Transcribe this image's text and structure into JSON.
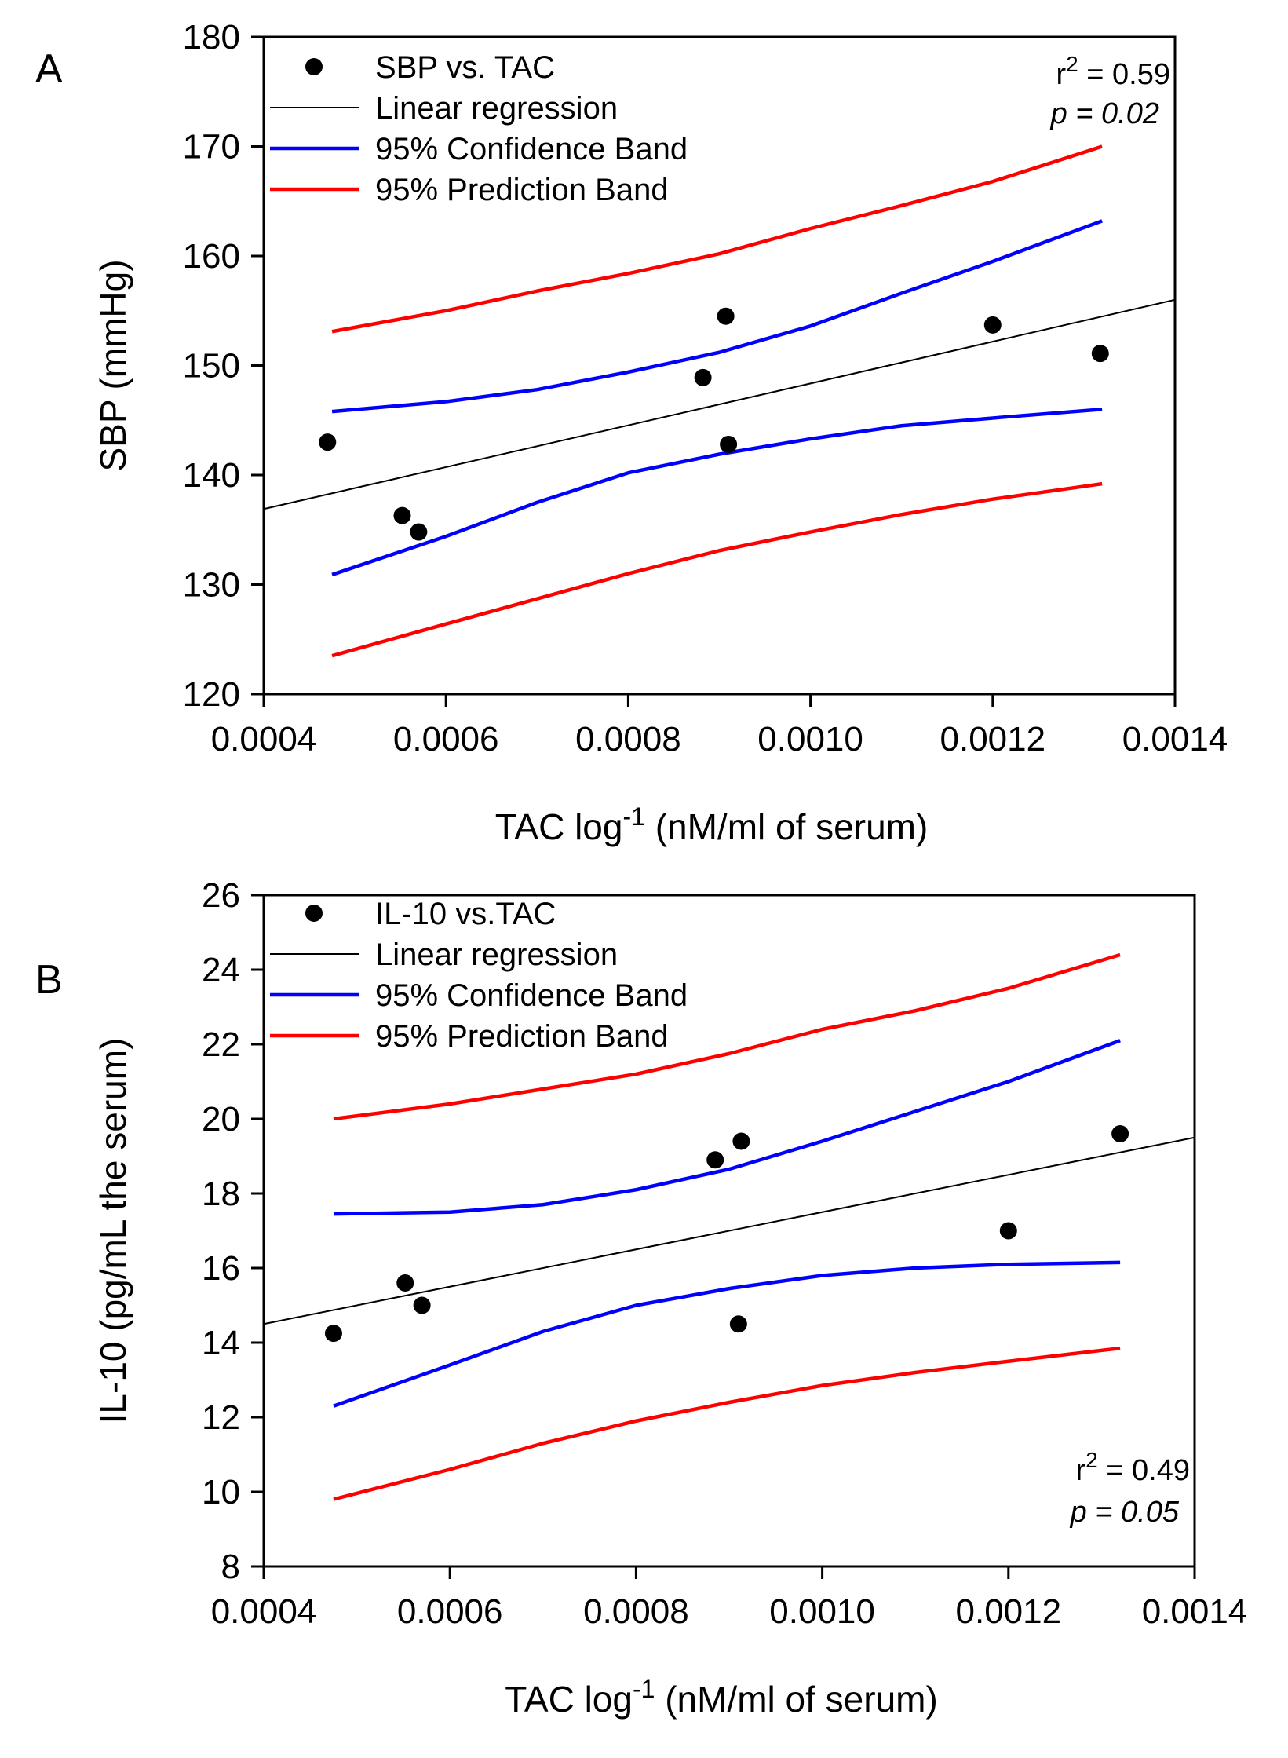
{
  "chart_data": [
    {
      "type": "scatter",
      "panel_label": "A",
      "title": "",
      "xlabel": "TAC log",
      "xlabel_sup": "-1",
      "xlabel_suffix": " (nM/ml of serum)",
      "ylabel": "SBP (mmHg)",
      "xlim": [
        0.0004,
        0.0014
      ],
      "ylim": [
        120,
        180
      ],
      "xticks": [
        0.0004,
        0.0006,
        0.0008,
        0.001,
        0.0012,
        0.0014
      ],
      "xtick_labels": [
        "0.0004",
        "0.0006",
        "0.0008",
        "0.0010",
        "0.0012",
        "0.0014"
      ],
      "yticks": [
        120,
        130,
        140,
        150,
        160,
        170,
        180
      ],
      "ytick_labels": [
        "120",
        "130",
        "140",
        "150",
        "160",
        "170",
        "180"
      ],
      "legend": {
        "position": "top-left",
        "entries": [
          "SBP vs. TAC",
          "Linear regression",
          "95% Confidence Band",
          "95% Prediction Band"
        ]
      },
      "colors": {
        "points": "#000000",
        "regression": "#000000",
        "confidence": "#0000ff",
        "prediction": "#ff0000"
      },
      "stats": {
        "r2_prefix": "r",
        "r2_sup": "2",
        "r2_value": " = 0.59",
        "p_text": "p = 0.02",
        "position": "top-right"
      },
      "points": {
        "x": [
          0.00047,
          0.000552,
          0.00057,
          0.000882,
          0.000907,
          0.00091,
          0.0012,
          0.001318
        ],
        "y": [
          143.0,
          136.3,
          134.8,
          148.9,
          154.5,
          142.8,
          153.7,
          151.1
        ]
      },
      "regression": {
        "x": [
          0.0004,
          0.0014
        ],
        "y": [
          136.9,
          156.0
        ]
      },
      "confidence_upper": {
        "x": [
          0.000475,
          0.0006,
          0.0007,
          0.0008,
          0.0009,
          0.001,
          0.0011,
          0.0012,
          0.00132
        ],
        "y": [
          145.8,
          146.7,
          147.8,
          149.4,
          151.2,
          153.6,
          156.6,
          159.5,
          163.2
        ]
      },
      "confidence_lower": {
        "x": [
          0.000475,
          0.0006,
          0.0007,
          0.0008,
          0.0009,
          0.001,
          0.0011,
          0.0012,
          0.00132
        ],
        "y": [
          130.9,
          134.4,
          137.5,
          140.2,
          141.9,
          143.3,
          144.5,
          145.2,
          146.0
        ]
      },
      "prediction_upper": {
        "x": [
          0.000475,
          0.0006,
          0.0007,
          0.0008,
          0.0009,
          0.001,
          0.0011,
          0.0012,
          0.00132
        ],
        "y": [
          153.1,
          155.0,
          156.8,
          158.4,
          160.2,
          162.5,
          164.6,
          166.8,
          170.0
        ]
      },
      "prediction_lower": {
        "x": [
          0.000475,
          0.0006,
          0.0007,
          0.0008,
          0.0009,
          0.001,
          0.0011,
          0.0012,
          0.00132
        ],
        "y": [
          123.5,
          126.4,
          128.7,
          131.0,
          133.1,
          134.8,
          136.4,
          137.8,
          139.2
        ]
      }
    },
    {
      "type": "scatter",
      "panel_label": "B",
      "title": "",
      "xlabel": "TAC log",
      "xlabel_sup": "-1",
      "xlabel_suffix": " (nM/ml of serum)",
      "ylabel": "IL-10 (pg/mL the serum)",
      "xlim": [
        0.0004,
        0.0014
      ],
      "ylim": [
        8,
        26
      ],
      "xticks": [
        0.0004,
        0.0006,
        0.0008,
        0.001,
        0.0012,
        0.0014
      ],
      "xtick_labels": [
        "0.0004",
        "0.0006",
        "0.0008",
        "0.0010",
        "0.0012",
        "0.0014"
      ],
      "yticks": [
        8,
        10,
        12,
        14,
        16,
        18,
        20,
        22,
        24,
        26
      ],
      "ytick_labels": [
        "8",
        "10",
        "12",
        "14",
        "16",
        "18",
        "20",
        "22",
        "24",
        "26"
      ],
      "legend": {
        "position": "top-left",
        "entries": [
          "IL-10 vs.TAC",
          "Linear regression",
          "95% Confidence Band",
          "95% Prediction Band"
        ]
      },
      "colors": {
        "points": "#000000",
        "regression": "#000000",
        "confidence": "#0000ff",
        "prediction": "#ff0000"
      },
      "stats": {
        "r2_prefix": "r",
        "r2_sup": "2",
        "r2_value": " = 0.49",
        "p_text": "p = 0.05",
        "position": "bottom-right"
      },
      "points": {
        "x": [
          0.000475,
          0.000552,
          0.00057,
          0.000885,
          0.000913,
          0.00091,
          0.0012,
          0.00132
        ],
        "y": [
          14.25,
          15.6,
          15.0,
          18.9,
          19.4,
          14.5,
          17.0,
          19.6
        ]
      },
      "regression": {
        "x": [
          0.0004,
          0.0014
        ],
        "y": [
          14.5,
          19.5
        ]
      },
      "confidence_upper": {
        "x": [
          0.000475,
          0.0006,
          0.0007,
          0.0008,
          0.0009,
          0.001,
          0.0011,
          0.0012,
          0.00132
        ],
        "y": [
          17.45,
          17.5,
          17.7,
          18.1,
          18.65,
          19.4,
          20.2,
          21.0,
          22.1
        ]
      },
      "confidence_lower": {
        "x": [
          0.000475,
          0.0006,
          0.0007,
          0.0008,
          0.0009,
          0.001,
          0.0011,
          0.0012,
          0.00132
        ],
        "y": [
          12.3,
          13.4,
          14.3,
          15.0,
          15.45,
          15.8,
          16.0,
          16.1,
          16.15
        ]
      },
      "prediction_upper": {
        "x": [
          0.000475,
          0.0006,
          0.0007,
          0.0008,
          0.0009,
          0.001,
          0.0011,
          0.0012,
          0.00132
        ],
        "y": [
          20.0,
          20.4,
          20.8,
          21.2,
          21.75,
          22.4,
          22.9,
          23.5,
          24.4
        ]
      },
      "prediction_lower": {
        "x": [
          0.000475,
          0.0006,
          0.0007,
          0.0008,
          0.0009,
          0.001,
          0.0011,
          0.0012,
          0.00132
        ],
        "y": [
          9.8,
          10.6,
          11.3,
          11.9,
          12.4,
          12.85,
          13.2,
          13.5,
          13.85
        ]
      }
    }
  ]
}
